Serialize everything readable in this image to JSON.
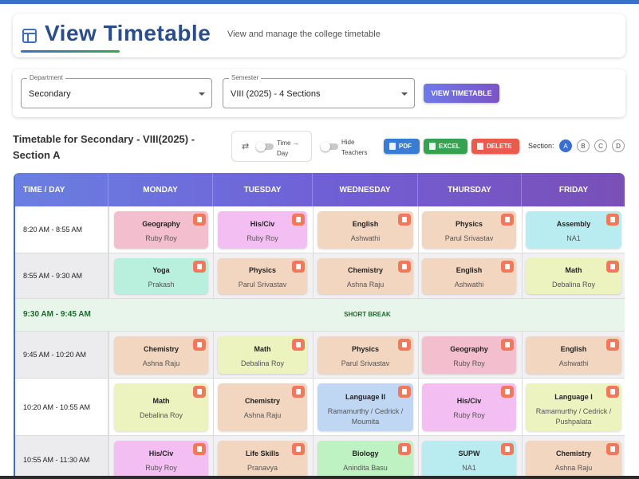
{
  "header": {
    "title": "View Timetable",
    "subtitle": "View and manage the college timetable",
    "icon": "table-icon"
  },
  "filters": {
    "department": {
      "label": "Department",
      "value": "Secondary"
    },
    "semester": {
      "label": "Semester",
      "value": "VIII (2025) - 4 Sections"
    },
    "view_button": "VIEW TIMETABLE"
  },
  "toolbar": {
    "heading": "Timetable for Secondary - VIII(2025) - Section A",
    "toggle_time_day": {
      "label_line1": "Time →",
      "label_line2": "Day",
      "on": false
    },
    "toggle_hide_teachers": {
      "label_line1": "Hide",
      "label_line2": "Teachers",
      "on": false
    },
    "pdf": "PDF",
    "excel": "EXCEL",
    "delete": "DELETE",
    "section_label": "Section:",
    "sections": [
      "A",
      "B",
      "C",
      "D"
    ],
    "active_section": "A"
  },
  "colors": {
    "accent": "#3b6fc9",
    "header_gradient_start": "#6a7fe1",
    "header_gradient_end": "#7a4fb7",
    "pdf": "#3a7bd5",
    "excel": "#36a24f",
    "delete": "#eb5b4c",
    "break_text": "#1d6b2b"
  },
  "table": {
    "columns": [
      "TIME / DAY",
      "MONDAY",
      "TUESDAY",
      "WEDNESDAY",
      "THURSDAY",
      "FRIDAY"
    ],
    "rows": [
      {
        "time": "8:20 AM - 8:55 AM",
        "cells": [
          {
            "subject": "Geography",
            "teacher": "Ruby Roy",
            "color": "pink"
          },
          {
            "subject": "His/Civ",
            "teacher": "Ruby Roy",
            "color": "violet"
          },
          {
            "subject": "English",
            "teacher": "Ashwathi",
            "color": "peach"
          },
          {
            "subject": "Physics",
            "teacher": "Parul Srivastav",
            "color": "peach"
          },
          {
            "subject": "Assembly",
            "teacher": "NA1",
            "color": "cyan"
          }
        ]
      },
      {
        "time": "8:55 AM - 9:30 AM",
        "cells": [
          {
            "subject": "Yoga",
            "teacher": "Prakash",
            "color": "mint"
          },
          {
            "subject": "Physics",
            "teacher": "Parul Srivastav",
            "color": "peach"
          },
          {
            "subject": "Chemistry",
            "teacher": "Ashna Raju",
            "color": "peach"
          },
          {
            "subject": "English",
            "teacher": "Ashwathi",
            "color": "peach"
          },
          {
            "subject": "Math",
            "teacher": "Debalina Roy",
            "color": "lime"
          }
        ]
      },
      {
        "break": true,
        "time": "9:30 AM - 9:45 AM",
        "label": "SHORT BREAK"
      },
      {
        "time": "9:45 AM - 10:20 AM",
        "cells": [
          {
            "subject": "Chemistry",
            "teacher": "Ashna Raju",
            "color": "peach"
          },
          {
            "subject": "Math",
            "teacher": "Debalina Roy",
            "color": "lime"
          },
          {
            "subject": "Physics",
            "teacher": "Parul Srivastav",
            "color": "peach"
          },
          {
            "subject": "Geography",
            "teacher": "Ruby Roy",
            "color": "pink"
          },
          {
            "subject": "English",
            "teacher": "Ashwathi",
            "color": "peach"
          }
        ]
      },
      {
        "time": "10:20 AM - 10:55 AM",
        "cells": [
          {
            "subject": "Math",
            "teacher": "Debalina Roy",
            "color": "lime"
          },
          {
            "subject": "Chemistry",
            "teacher": "Ashna Raju",
            "color": "peach"
          },
          {
            "subject": "Language II",
            "teacher": "Ramamurthy / Cedrick / Moumita",
            "color": "blue"
          },
          {
            "subject": "His/Civ",
            "teacher": "Ruby Roy",
            "color": "violet"
          },
          {
            "subject": "Language I",
            "teacher": "Ramamurthy / Cedrick / Pushpalata",
            "color": "lime"
          }
        ]
      },
      {
        "time": "10:55 AM - 11:30 AM",
        "cells": [
          {
            "subject": "His/Civ",
            "teacher": "Ruby Roy",
            "color": "violet"
          },
          {
            "subject": "Life Skills",
            "teacher": "Pranavya",
            "color": "peach"
          },
          {
            "subject": "Biology",
            "teacher": "Anindita Basu",
            "color": "green"
          },
          {
            "subject": "SUPW",
            "teacher": "NA1",
            "color": "cyan"
          },
          {
            "subject": "Chemistry",
            "teacher": "Ashna Raju",
            "color": "peach"
          }
        ]
      }
    ]
  }
}
